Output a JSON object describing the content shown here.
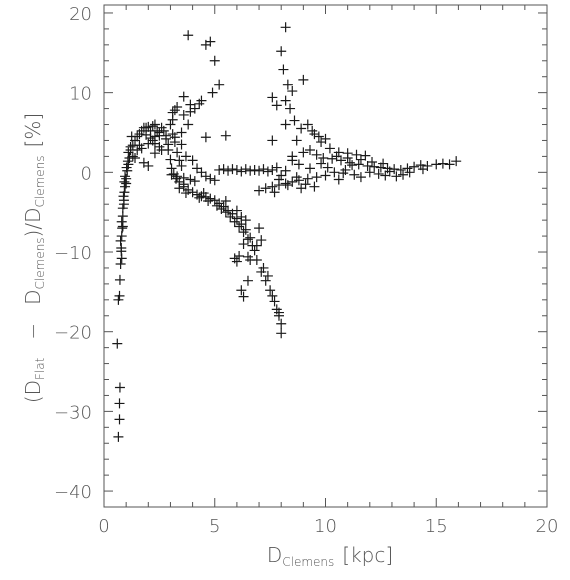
{
  "chart_data": {
    "type": "scatter",
    "marker": "+",
    "xlabel": {
      "main": "D",
      "sub": "Clemens",
      "unit": "[kpc]"
    },
    "ylabel": {
      "open": "(D",
      "sub1": "Flat",
      "minus": "−",
      "d2": "D",
      "sub2": "Clemens",
      "mid": ")/D",
      "sub3": "Clemens",
      "unit": "[%]"
    },
    "xlim": [
      0,
      20
    ],
    "ylim": [
      -42,
      21
    ],
    "x_ticks": [
      0,
      5,
      10,
      15,
      20
    ],
    "y_ticks": [
      20,
      10,
      0,
      -10,
      -20,
      -30,
      -40
    ],
    "x_tick_labels": [
      "0",
      "5",
      "10",
      "15",
      "20"
    ],
    "y_tick_labels": [
      "20",
      "10",
      "0",
      "−10",
      "−20",
      "−30",
      "−40"
    ],
    "grid": false,
    "legend": false,
    "points": [
      [
        0.65,
        -33.2
      ],
      [
        0.7,
        -31.0
      ],
      [
        0.7,
        -29.0
      ],
      [
        0.72,
        -27.0
      ],
      [
        0.6,
        -21.5
      ],
      [
        0.65,
        -16.0
      ],
      [
        0.7,
        -15.5
      ],
      [
        0.72,
        -13.5
      ],
      [
        0.75,
        -11.5
      ],
      [
        0.8,
        -10.8
      ],
      [
        0.78,
        -9.5
      ],
      [
        0.8,
        -8.0
      ],
      [
        0.82,
        -7.0
      ],
      [
        0.8,
        -6.2
      ],
      [
        0.85,
        -5.5
      ],
      [
        0.85,
        -4.5
      ],
      [
        0.9,
        -3.5
      ],
      [
        0.92,
        -2.5
      ],
      [
        0.95,
        -1.8
      ],
      [
        1.0,
        -0.8
      ],
      [
        1.05,
        0.2
      ],
      [
        1.1,
        1.0
      ],
      [
        1.15,
        1.8
      ],
      [
        1.2,
        2.8
      ],
      [
        1.3,
        3.4
      ],
      [
        1.4,
        4.0
      ],
      [
        1.5,
        4.5
      ],
      [
        1.6,
        4.8
      ],
      [
        1.7,
        5.2
      ],
      [
        1.8,
        5.6
      ],
      [
        1.9,
        5.6
      ],
      [
        2.0,
        5.7
      ],
      [
        2.1,
        5.2
      ],
      [
        2.2,
        5.8
      ],
      [
        2.3,
        6.0
      ],
      [
        2.4,
        5.2
      ],
      [
        2.5,
        4.6
      ],
      [
        1.3,
        2.0
      ],
      [
        1.4,
        1.8
      ],
      [
        1.5,
        2.8
      ],
      [
        1.7,
        3.0
      ],
      [
        2.0,
        3.6
      ],
      [
        2.2,
        4.0
      ],
      [
        2.3,
        4.5
      ],
      [
        2.5,
        5.0
      ],
      [
        2.7,
        5.2
      ],
      [
        2.8,
        4.2
      ],
      [
        2.9,
        3.5
      ],
      [
        3.0,
        6.0
      ],
      [
        3.1,
        7.5
      ],
      [
        3.2,
        7.8
      ],
      [
        3.3,
        8.2
      ],
      [
        3.1,
        4.8
      ],
      [
        3.2,
        3.8
      ],
      [
        3.3,
        2.5
      ],
      [
        3.4,
        1.5
      ],
      [
        3.5,
        0.8
      ],
      [
        2.0,
        0.8
      ],
      [
        1.8,
        1.2
      ],
      [
        2.3,
        2.4
      ],
      [
        2.6,
        2.8
      ],
      [
        3.0,
        1.6
      ],
      [
        1.2,
        3.2
      ],
      [
        1.1,
        2.5
      ],
      [
        1.25,
        4.5
      ],
      [
        2.5,
        3.2
      ],
      [
        3.05,
        0.5
      ],
      [
        3.15,
        -0.2
      ],
      [
        3.25,
        -0.8
      ],
      [
        3.4,
        -1.2
      ],
      [
        3.6,
        -1.8
      ],
      [
        3.8,
        -2.2
      ],
      [
        4.0,
        -2.5
      ],
      [
        4.2,
        -2.8
      ],
      [
        4.4,
        -3.0
      ],
      [
        4.6,
        -3.1
      ],
      [
        4.8,
        -3.3
      ],
      [
        5.0,
        -3.5
      ],
      [
        5.2,
        -3.9
      ],
      [
        5.4,
        -4.3
      ],
      [
        5.6,
        -4.8
      ],
      [
        5.8,
        -5.2
      ],
      [
        6.0,
        -5.8
      ],
      [
        6.2,
        -6.5
      ],
      [
        6.4,
        -7.2
      ],
      [
        6.6,
        -8.2
      ],
      [
        6.8,
        -9.8
      ],
      [
        6.9,
        -11.0
      ],
      [
        7.1,
        -12.5
      ],
      [
        7.3,
        -13.6
      ],
      [
        7.5,
        -14.8
      ],
      [
        7.7,
        -16.2
      ],
      [
        7.8,
        -17.2
      ],
      [
        7.9,
        -18.0
      ],
      [
        8.0,
        -19.0
      ],
      [
        8.0,
        -20.2
      ],
      [
        7.9,
        -17.6
      ],
      [
        7.6,
        -15.5
      ],
      [
        7.4,
        -13.0
      ],
      [
        7.2,
        -12.0
      ],
      [
        6.6,
        -11.0
      ],
      [
        6.5,
        -10.6
      ],
      [
        6.3,
        -9.0
      ],
      [
        5.9,
        -10.8
      ],
      [
        6.0,
        -11.2
      ],
      [
        6.1,
        -10.5
      ],
      [
        6.5,
        -13.6
      ],
      [
        6.2,
        -14.8
      ],
      [
        6.3,
        -15.6
      ],
      [
        7.1,
        -8.5
      ],
      [
        6.9,
        -9.2
      ],
      [
        7.0,
        -7.0
      ],
      [
        3.8,
        17.2
      ],
      [
        4.6,
        16.0
      ],
      [
        4.8,
        16.4
      ],
      [
        5.0,
        14.0
      ],
      [
        3.6,
        9.5
      ],
      [
        3.9,
        8.5
      ],
      [
        4.4,
        9.0
      ],
      [
        4.9,
        10.0
      ],
      [
        5.2,
        11.0
      ],
      [
        3.5,
        3.5
      ],
      [
        3.7,
        2.0
      ],
      [
        4.0,
        1.5
      ],
      [
        5.5,
        4.6
      ],
      [
        8.2,
        18.2
      ],
      [
        8.0,
        15.2
      ],
      [
        8.1,
        12.9
      ],
      [
        8.3,
        11.0
      ],
      [
        7.6,
        9.4
      ],
      [
        7.8,
        8.4
      ],
      [
        8.2,
        9.0
      ],
      [
        8.5,
        10.2
      ],
      [
        9.0,
        11.6
      ],
      [
        7.6,
        4.0
      ],
      [
        8.2,
        6.0
      ],
      [
        8.7,
        4.0
      ],
      [
        9.2,
        6.0
      ],
      [
        9.5,
        4.8
      ],
      [
        9.8,
        3.8
      ],
      [
        10.2,
        3.0
      ],
      [
        10.6,
        2.5
      ],
      [
        11.0,
        2.4
      ],
      [
        11.4,
        2.2
      ],
      [
        11.8,
        2.1
      ],
      [
        8.5,
        1.5
      ],
      [
        8.8,
        1.0
      ],
      [
        9.0,
        2.5
      ],
      [
        9.3,
        2.8
      ],
      [
        9.6,
        2.2
      ],
      [
        9.9,
        1.8
      ],
      [
        10.3,
        1.7
      ],
      [
        10.7,
        1.5
      ],
      [
        11.1,
        1.2
      ],
      [
        11.5,
        1.0
      ],
      [
        11.9,
        0.8
      ],
      [
        12.2,
        0.7
      ],
      [
        12.5,
        0.6
      ],
      [
        12.8,
        0.5
      ],
      [
        13.1,
        0.4
      ],
      [
        13.4,
        0.3
      ],
      [
        13.7,
        0.5
      ],
      [
        14.0,
        0.7
      ],
      [
        14.3,
        0.9
      ],
      [
        14.6,
        0.8
      ],
      [
        15.0,
        1.0
      ],
      [
        15.3,
        1.1
      ],
      [
        15.6,
        1.0
      ],
      [
        15.9,
        1.4
      ],
      [
        13.2,
        -0.5
      ],
      [
        13.5,
        -0.3
      ],
      [
        12.0,
        0.0
      ],
      [
        12.4,
        -0.2
      ],
      [
        12.7,
        -0.4
      ],
      [
        11.3,
        -0.3
      ],
      [
        10.8,
        -0.1
      ],
      [
        10.4,
        0.0
      ],
      [
        10.0,
        -0.4
      ],
      [
        9.6,
        -0.6
      ],
      [
        9.2,
        -0.8
      ],
      [
        8.8,
        -1.0
      ],
      [
        8.5,
        -1.2
      ],
      [
        8.2,
        -1.4
      ],
      [
        7.9,
        -1.6
      ],
      [
        7.6,
        -1.8
      ],
      [
        7.3,
        -2.0
      ],
      [
        7.0,
        -2.3
      ],
      [
        9.1,
        -1.5
      ],
      [
        8.9,
        -2.0
      ],
      [
        9.5,
        -1.8
      ],
      [
        10.6,
        -0.9
      ],
      [
        11.6,
        -0.6
      ],
      [
        5.2,
        0.3
      ],
      [
        5.4,
        0.4
      ],
      [
        5.6,
        0.2
      ],
      [
        5.8,
        0.4
      ],
      [
        6.0,
        0.3
      ],
      [
        6.2,
        0.1
      ],
      [
        6.4,
        0.4
      ],
      [
        6.6,
        0.2
      ],
      [
        6.8,
        0.3
      ],
      [
        7.0,
        0.2
      ],
      [
        7.2,
        0.4
      ],
      [
        7.4,
        0.1
      ],
      [
        7.6,
        0.3
      ],
      [
        4.2,
        0.5
      ],
      [
        4.4,
        0.0
      ],
      [
        4.6,
        -0.5
      ],
      [
        4.8,
        -0.8
      ],
      [
        5.0,
        -1.0
      ],
      [
        3.6,
        -0.7
      ],
      [
        3.9,
        -0.9
      ],
      [
        4.1,
        -1.1
      ],
      [
        2.9,
        2.8
      ],
      [
        3.05,
        -0.3
      ],
      [
        3.3,
        -0.5
      ],
      [
        3.6,
        -1.5
      ],
      [
        3.4,
        -2.0
      ],
      [
        3.7,
        -2.6
      ],
      [
        4.3,
        -3.2
      ],
      [
        4.5,
        -2.6
      ],
      [
        4.7,
        -3.6
      ],
      [
        5.1,
        -4.2
      ],
      [
        5.3,
        -4.6
      ],
      [
        5.5,
        -5.0
      ],
      [
        5.7,
        -5.6
      ],
      [
        5.9,
        -6.2
      ],
      [
        6.1,
        -6.8
      ],
      [
        6.3,
        -7.5
      ],
      [
        6.5,
        -8.4
      ],
      [
        6.7,
        -9.2
      ],
      [
        6.4,
        -6.0
      ],
      [
        6.0,
        -4.8
      ],
      [
        5.5,
        -3.6
      ],
      [
        6.2,
        -5.6
      ],
      [
        2.8,
        4.6
      ],
      [
        2.6,
        5.6
      ],
      [
        2.1,
        4.3
      ],
      [
        1.9,
        4.7
      ],
      [
        2.3,
        3.6
      ],
      [
        1.6,
        3.4
      ],
      [
        3.2,
        4.4
      ],
      [
        3.1,
        6.6
      ],
      [
        3.6,
        7.2
      ],
      [
        3.9,
        7.6
      ],
      [
        3.8,
        6.0
      ],
      [
        3.5,
        5.0
      ],
      [
        4.1,
        8.0
      ],
      [
        4.3,
        8.6
      ],
      [
        4.6,
        4.4
      ],
      [
        8.5,
        2.0
      ],
      [
        8.2,
        0.2
      ],
      [
        8.0,
        -0.4
      ],
      [
        7.9,
        -0.9
      ],
      [
        7.8,
        0.6
      ],
      [
        10.9,
        0.3
      ],
      [
        11.2,
        0.9
      ],
      [
        10.1,
        0.6
      ],
      [
        12.9,
        0.1
      ],
      [
        13.8,
        0.0
      ],
      [
        14.4,
        0.4
      ],
      [
        9.7,
        4.5
      ],
      [
        10.0,
        4.2
      ],
      [
        9.4,
        5.2
      ],
      [
        8.9,
        5.5
      ],
      [
        8.6,
        6.5
      ],
      [
        8.4,
        8.0
      ],
      [
        7.7,
        -2.5
      ],
      [
        8.3,
        -1.6
      ],
      [
        8.7,
        -0.6
      ],
      [
        9.3,
        0.5
      ],
      [
        9.8,
        1.1
      ],
      [
        10.5,
        2.0
      ],
      [
        11.0,
        1.8
      ],
      [
        11.6,
        1.6
      ],
      [
        12.1,
        1.3
      ],
      [
        12.6,
        1.1
      ],
      [
        1.0,
        -1.4
      ],
      [
        0.95,
        -0.5
      ],
      [
        0.9,
        -4.0
      ],
      [
        0.85,
        -6.8
      ],
      [
        0.88,
        -3.0
      ],
      [
        0.92,
        -1.2
      ],
      [
        1.02,
        0.6
      ],
      [
        1.08,
        1.4
      ],
      [
        0.75,
        -8.6
      ],
      [
        0.78,
        -9.9
      ]
    ]
  }
}
